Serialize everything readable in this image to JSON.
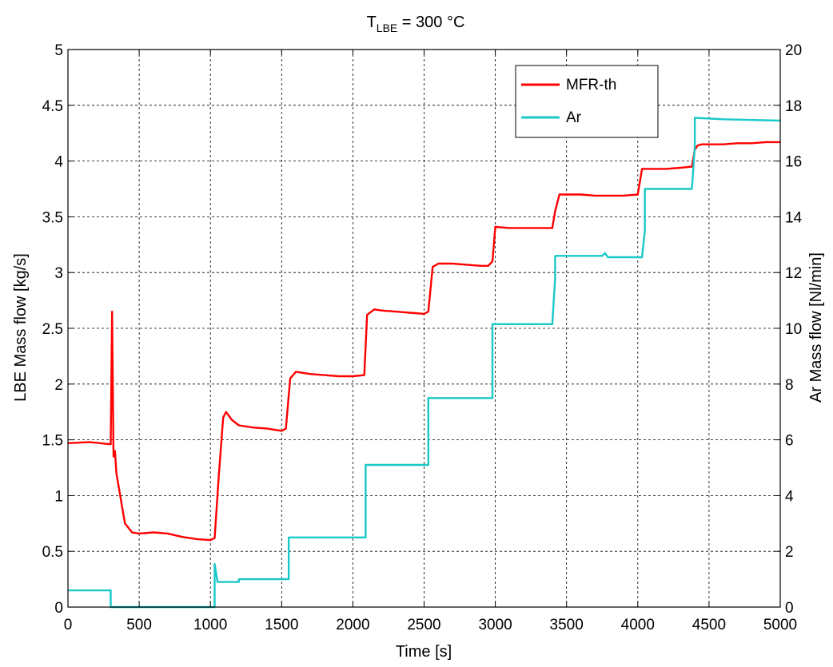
{
  "chart_data": {
    "type": "line",
    "title_main": "T",
    "title_sub": "LBE",
    "title_rest": " = 300 °C",
    "xlabel": "Time [s]",
    "ylabel_left": "LBE Mass flow [kg/s]",
    "ylabel_right": "Ar Mass flow [Nl/min]",
    "xlim": [
      0,
      5000
    ],
    "ylim_left": [
      0,
      5
    ],
    "ylim_right": [
      0,
      20
    ],
    "x_ticks": [
      "0",
      "500",
      "1000",
      "1500",
      "2000",
      "2500",
      "3000",
      "3500",
      "4000",
      "4500",
      "5000"
    ],
    "y_left_ticks": [
      "0",
      "0.5",
      "1",
      "1.5",
      "2",
      "2.5",
      "3",
      "3.5",
      "4",
      "4.5",
      "5"
    ],
    "y_right_ticks": [
      "0",
      "2",
      "4",
      "6",
      "8",
      "10",
      "12",
      "14",
      "16",
      "18",
      "20"
    ],
    "grid": true,
    "legend_position": "top-right",
    "series": [
      {
        "name": "MFR-th",
        "color": "#ff0000",
        "axis": "left",
        "x": [
          0,
          150,
          300,
          310,
          320,
          330,
          340,
          360,
          380,
          400,
          450,
          500,
          600,
          700,
          800,
          900,
          1000,
          1030,
          1060,
          1090,
          1110,
          1150,
          1200,
          1300,
          1400,
          1500,
          1530,
          1560,
          1600,
          1700,
          1800,
          1900,
          2000,
          2080,
          2100,
          2150,
          2200,
          2300,
          2400,
          2500,
          2530,
          2560,
          2600,
          2700,
          2800,
          2900,
          2950,
          2980,
          3000,
          3100,
          3200,
          3300,
          3400,
          3420,
          3450,
          3500,
          3600,
          3700,
          3800,
          3900,
          4000,
          4030,
          4060,
          4100,
          4200,
          4300,
          4380,
          4400,
          4420,
          4450,
          4500,
          4600,
          4700,
          4800,
          4900,
          5000
        ],
        "y": [
          1.47,
          1.48,
          1.46,
          2.65,
          1.35,
          1.4,
          1.2,
          1.05,
          0.9,
          0.75,
          0.67,
          0.66,
          0.67,
          0.66,
          0.63,
          0.61,
          0.6,
          0.62,
          1.2,
          1.7,
          1.75,
          1.68,
          1.63,
          1.61,
          1.6,
          1.58,
          1.6,
          2.05,
          2.11,
          2.09,
          2.08,
          2.07,
          2.07,
          2.08,
          2.62,
          2.67,
          2.66,
          2.65,
          2.64,
          2.63,
          2.65,
          3.05,
          3.08,
          3.08,
          3.07,
          3.06,
          3.06,
          3.1,
          3.41,
          3.4,
          3.4,
          3.4,
          3.4,
          3.55,
          3.7,
          3.7,
          3.7,
          3.69,
          3.69,
          3.69,
          3.7,
          3.93,
          3.93,
          3.93,
          3.93,
          3.94,
          3.95,
          4.1,
          4.14,
          4.15,
          4.15,
          4.15,
          4.16,
          4.16,
          4.17,
          4.17
        ]
      },
      {
        "name": "Ar",
        "color": "#1ac8c8",
        "axis": "right",
        "x": [
          0,
          300,
          300,
          1030,
          1030,
          1050,
          1050,
          1200,
          1200,
          1550,
          1550,
          2090,
          2090,
          2530,
          2530,
          2980,
          2980,
          3400,
          3420,
          3420,
          3750,
          3770,
          3790,
          4030,
          4050,
          4050,
          4380,
          4400,
          4400,
          4600,
          5000
        ],
        "y": [
          0.6,
          0.6,
          0.0,
          0.0,
          1.55,
          0.9,
          0.9,
          0.9,
          1.0,
          1.0,
          2.5,
          2.5,
          5.1,
          5.1,
          7.5,
          7.5,
          10.15,
          10.15,
          11.8,
          12.6,
          12.6,
          12.7,
          12.55,
          12.55,
          13.5,
          15.0,
          15.0,
          16.5,
          17.55,
          17.5,
          17.45
        ]
      }
    ]
  }
}
